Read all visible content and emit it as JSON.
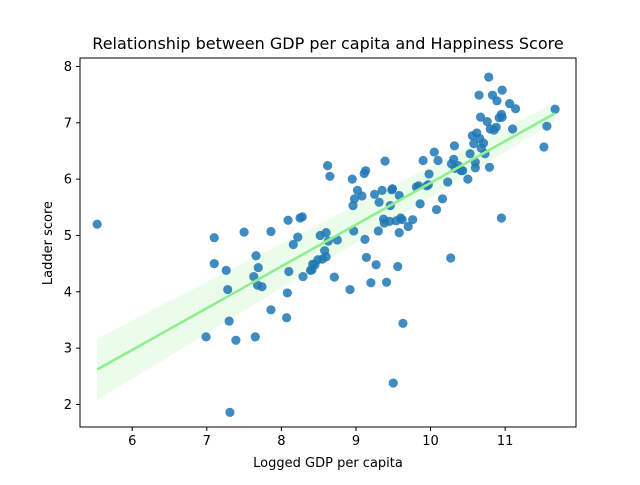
{
  "chart_data": {
    "type": "scatter",
    "title": "Relationship between GDP per capita and Happiness Score",
    "xlabel": "Logged GDP per capita",
    "ylabel": "Ladder score",
    "xlim": [
      5.3,
      11.95
    ],
    "ylim": [
      1.6,
      8.15
    ],
    "xticks": [
      6,
      7,
      8,
      9,
      10,
      11
    ],
    "yticks": [
      2,
      3,
      4,
      5,
      6,
      7,
      8
    ],
    "grid": false,
    "colors": {
      "points": "#1f77b4",
      "regression_line": "#90ee90",
      "confidence_band": "#90ee90"
    },
    "series": [
      {
        "kind": "points",
        "x": [
          5.53,
          6.99,
          7.1,
          7.1,
          7.26,
          7.28,
          7.3,
          7.31,
          7.39,
          7.5,
          7.63,
          7.65,
          7.66,
          7.68,
          7.69,
          7.74,
          7.86,
          7.86,
          8.07,
          8.08,
          8.09,
          8.1,
          8.16,
          8.22,
          8.25,
          8.28,
          8.39,
          8.41,
          8.45,
          8.49,
          8.52,
          8.55,
          8.58,
          8.6,
          8.6,
          8.62,
          8.65,
          8.71,
          8.75,
          8.92,
          8.95,
          8.96,
          8.97,
          8.98,
          9.08,
          9.11,
          9.12,
          9.13,
          9.14,
          9.2,
          9.25,
          9.27,
          9.3,
          9.31,
          9.35,
          9.37,
          9.38,
          9.39,
          9.41,
          9.46,
          9.48,
          9.49,
          9.5,
          9.54,
          9.56,
          9.58,
          9.58,
          9.6,
          9.62,
          9.63,
          9.7,
          9.76,
          9.81,
          9.84,
          9.86,
          9.9,
          9.97,
          9.98,
          10.05,
          10.08,
          10.1,
          10.16,
          10.23,
          10.27,
          10.28,
          10.31,
          10.32,
          10.37,
          10.41,
          10.43,
          10.5,
          10.53,
          10.56,
          10.58,
          10.6,
          10.62,
          10.65,
          10.66,
          10.67,
          10.68,
          10.71,
          10.73,
          10.76,
          10.79,
          10.8,
          10.85,
          10.88,
          10.89,
          10.92,
          10.95,
          10.96,
          11.06,
          11.1,
          11.14,
          11.52,
          11.56,
          11.67,
          10.78,
          10.83,
          10.95,
          10.6,
          10.96,
          10.33,
          9.95,
          9.45,
          9.02,
          8.29,
          8.63,
          8.42
        ],
        "y": [
          5.2,
          3.2,
          4.5,
          4.96,
          4.38,
          4.04,
          3.48,
          1.86,
          3.14,
          5.06,
          4.27,
          3.2,
          4.64,
          4.12,
          4.43,
          4.09,
          3.68,
          5.07,
          3.54,
          3.98,
          5.27,
          4.36,
          4.84,
          4.97,
          5.31,
          5.33,
          4.38,
          4.39,
          4.48,
          4.57,
          5.0,
          4.58,
          4.73,
          5.05,
          4.62,
          6.24,
          6.05,
          4.26,
          4.92,
          4.04,
          6.0,
          5.53,
          5.08,
          5.65,
          5.7,
          6.1,
          4.93,
          6.15,
          4.61,
          4.16,
          5.73,
          4.48,
          5.08,
          5.59,
          5.8,
          5.29,
          5.22,
          6.32,
          4.17,
          5.53,
          5.81,
          5.83,
          2.38,
          5.26,
          4.45,
          5.05,
          5.71,
          5.31,
          5.28,
          3.44,
          5.16,
          5.28,
          5.86,
          5.88,
          5.56,
          6.33,
          5.9,
          6.09,
          6.48,
          5.46,
          6.33,
          5.65,
          5.95,
          4.6,
          6.27,
          6.35,
          6.59,
          6.24,
          6.15,
          6.15,
          6.0,
          6.45,
          6.77,
          6.63,
          6.2,
          6.82,
          7.49,
          6.72,
          7.1,
          6.55,
          6.64,
          6.45,
          7.02,
          6.21,
          6.89,
          6.87,
          6.92,
          7.39,
          7.09,
          5.31,
          7.58,
          7.34,
          6.89,
          7.25,
          6.57,
          6.94,
          7.24,
          7.81,
          7.49,
          7.15,
          6.3,
          7.1,
          6.19,
          5.88,
          5.25,
          5.8,
          4.27,
          4.9,
          4.49
        ]
      },
      {
        "kind": "regression",
        "x": [
          5.53,
          11.67
        ],
        "y": [
          2.62,
          7.17
        ],
        "ci_low": [
          2.08,
          7.02
        ],
        "ci_high": [
          3.17,
          7.36
        ]
      }
    ]
  }
}
